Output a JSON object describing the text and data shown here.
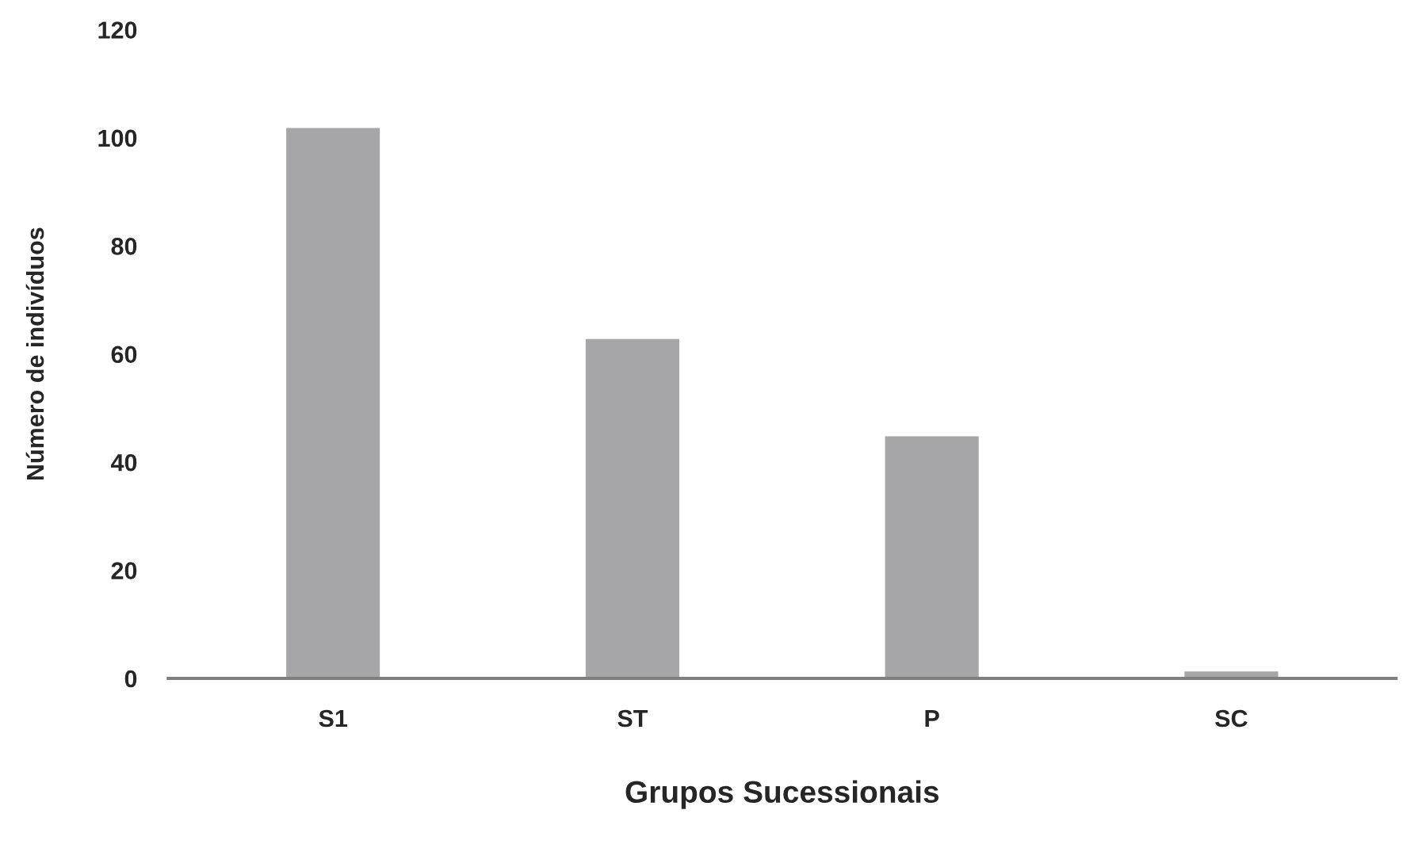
{
  "chart_data": {
    "type": "bar",
    "xlabel": "Grupos Sucessionais",
    "ylabel": "Número de indivíduos",
    "categories": [
      "S1",
      "ST",
      "P",
      "SC"
    ],
    "series": [
      {
        "color": "#a6a6a8",
        "values": [
          102,
          63,
          45,
          1.5
        ]
      }
    ],
    "ylim": [
      0,
      120
    ],
    "yticks": [
      0,
      20,
      40,
      60,
      80,
      100,
      120
    ],
    "grid": false,
    "legend": false
  }
}
